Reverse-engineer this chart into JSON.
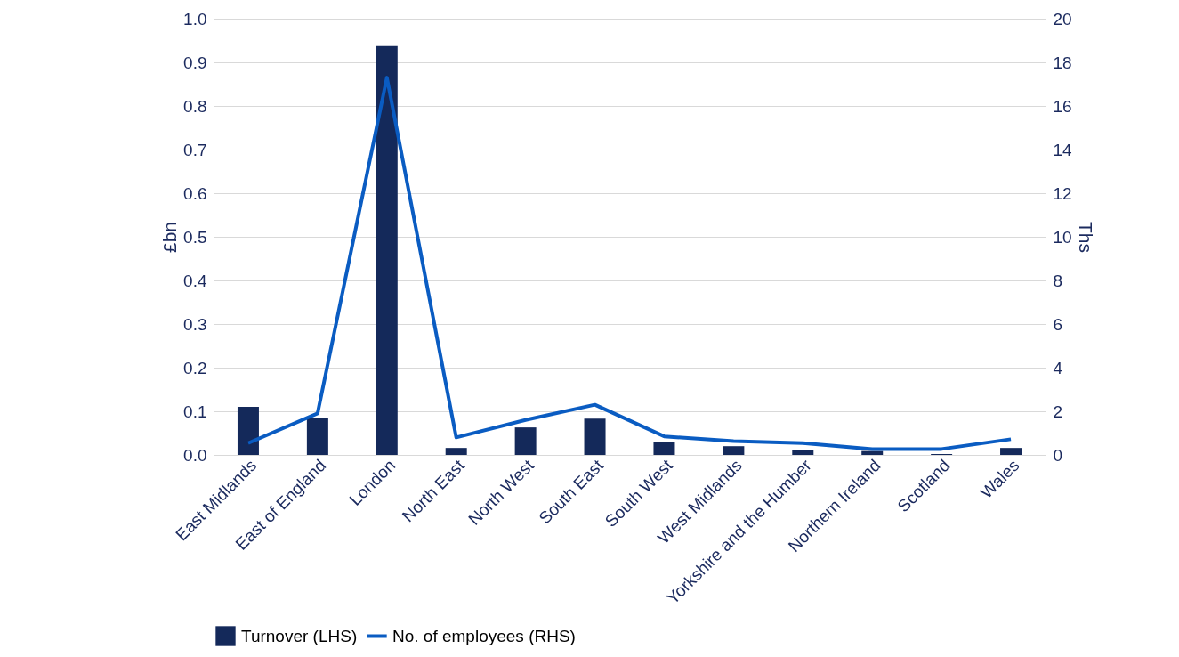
{
  "chart_data": {
    "type": "bar",
    "categories": [
      "East Midlands",
      "East of England",
      "London",
      "North East",
      "North West",
      "South East",
      "South West",
      "West Midlands",
      "Yorkshire and the Humber",
      "Northern Ireland",
      "Scotland",
      "Wales"
    ],
    "series": [
      {
        "name": "Turnover (LHS)",
        "color": "#14295a",
        "values": [
          0.11,
          0.085,
          0.937,
          0.016,
          0.063,
          0.083,
          0.029,
          0.02,
          0.011,
          0.009,
          0.002,
          0.016
        ]
      },
      {
        "name": "No. of employees (RHS)",
        "type": "line",
        "axis": "y2",
        "color": "#0a5cc2",
        "values": [
          0.54,
          1.9,
          17.3,
          0.8,
          1.6,
          2.3,
          0.85,
          0.63,
          0.54,
          0.27,
          0.27,
          0.72
        ]
      }
    ],
    "ylabel": "£bn",
    "y2label": "Ths",
    "ylim": [
      0,
      1.0
    ],
    "yticks": [
      {
        "value": 0,
        "label": "0.0"
      },
      0.1,
      0.2,
      0.3,
      0.4,
      0.5,
      0.6,
      0.7,
      0.8,
      0.9,
      {
        "value": 1,
        "label": "1.0"
      }
    ],
    "y2lim": [
      0,
      20
    ],
    "y2ticks": [
      0,
      2,
      4,
      6,
      8,
      10,
      12,
      14,
      16,
      18,
      20
    ],
    "grid": "y",
    "legend": "bottom",
    "marker": "none",
    "line_style": "solid"
  }
}
